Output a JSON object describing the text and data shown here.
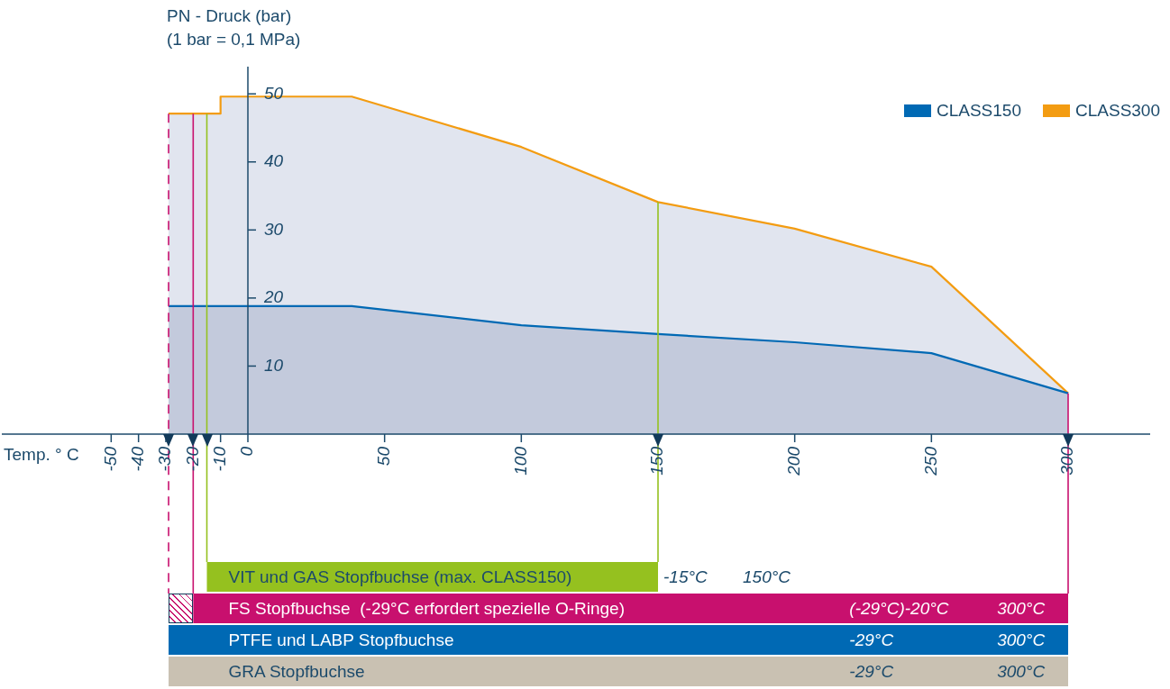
{
  "chart_data": [
    {
      "type": "area",
      "ylabel": "PN - Druck (bar)\n(1 bar = 0,1 MPa)",
      "xlabel": "Temp. ° C",
      "xlim": [
        -90,
        330
      ],
      "xticks": [
        -50,
        -40,
        -30,
        -20,
        -10,
        0,
        50,
        100,
        150,
        200,
        250,
        300
      ],
      "ylim": [
        0,
        54
      ],
      "yticks": [
        10,
        20,
        30,
        40,
        50
      ],
      "legend": "top right",
      "marker": "none",
      "grid": false,
      "series": [
        {
          "name": "CLASS150",
          "color": "#0069b4",
          "x": [
            -29,
            38,
            100,
            150,
            200,
            250,
            300
          ],
          "values": [
            18.8,
            18.8,
            16.0,
            14.7,
            13.5,
            11.9,
            6.0
          ]
        },
        {
          "name": "CLASS300",
          "color": "#f39c12",
          "x": [
            -29,
            -10,
            -10,
            38,
            100,
            150,
            200,
            250,
            300
          ],
          "values": [
            47.1,
            47.1,
            49.6,
            49.6,
            42.2,
            34.1,
            30.2,
            24.6,
            6.0
          ]
        }
      ],
      "ref_lines": [
        {
          "axis": "x",
          "value": -29,
          "color": "#c8106e",
          "line_style": "dashed"
        },
        {
          "axis": "x",
          "value": -20,
          "color": "#c8106e",
          "line_style": "solid"
        },
        {
          "axis": "x",
          "value": -15,
          "color": "#95c11f",
          "line_style": "solid"
        },
        {
          "axis": "x",
          "value": 150,
          "color": "#95c11f",
          "line_style": "solid"
        },
        {
          "axis": "x",
          "value": 300,
          "color": "#c8106e",
          "line_style": "solid"
        }
      ]
    },
    {
      "type": "bar",
      "orientation": "horizontal",
      "categories": [
        "VIT und GAS Stopfbuchse (max. CLASS150)",
        "FS Stopfbuchse  (-29°C erfordert spezielle O-Ringe)",
        "PTFE und LABP Stopfbuchse",
        "GRA Stopfbuchse"
      ],
      "base": [
        -15,
        -20,
        -29,
        -29
      ],
      "values": [
        165,
        320,
        329,
        329
      ],
      "colors": [
        "#95c11f",
        "#c8106e",
        "#0069b4",
        "#c9c1b2"
      ],
      "xlim": [
        -30,
        300
      ],
      "xticks": [
        -30,
        -20,
        -10,
        0,
        50,
        100,
        150,
        200,
        250,
        300
      ],
      "tick_labels": false,
      "annotations": [
        "-15°C",
        "150°C",
        "(-29°C)-20°C",
        "300°C",
        "-29°C",
        "300°C",
        "-29°C",
        "300°C"
      ]
    }
  ]
}
